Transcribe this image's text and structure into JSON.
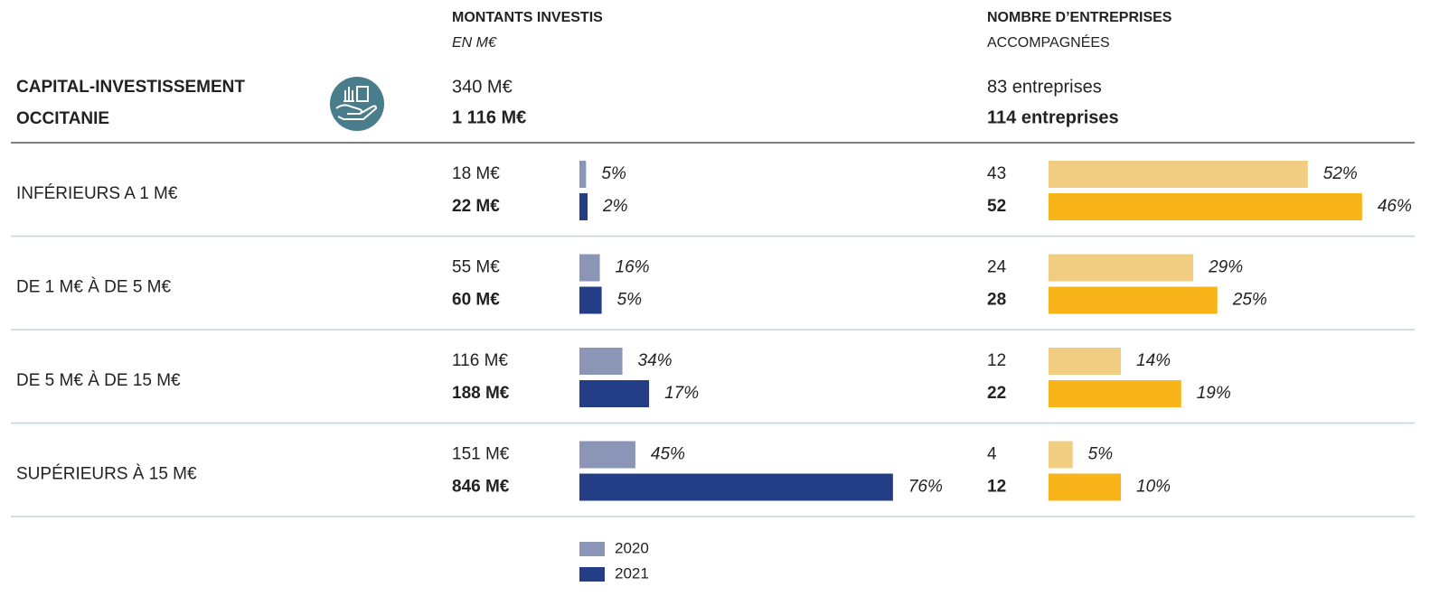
{
  "header": {
    "title": [
      "CAPITAL-INVESTISSEMENT",
      "OCCITANIE"
    ]
  },
  "columns": [
    {
      "title": "MONTANTS INVESTIS",
      "subtitle": "EN M€",
      "totals": [
        "340 M€",
        "1 116 M€"
      ]
    },
    {
      "title": "NOMBRE D’ENTREPRISES",
      "subtitle": "ACCOMPAGNÉES",
      "totals": [
        "83 entreprises",
        "114 entreprises"
      ]
    }
  ],
  "series": [
    {
      "name": "2020",
      "colors": [
        "#8a95b8",
        "#f0cd80"
      ]
    },
    {
      "name": "2021",
      "colors": [
        "#233e87",
        "#f8b419"
      ]
    }
  ],
  "rows": [
    {
      "label": "INFÉRIEURS A 1 M€",
      "cells": [
        {
          "values": [
            18,
            22
          ],
          "value_labels": [
            "18 M€",
            "22 M€"
          ],
          "shares": [
            5,
            2
          ],
          "share_labels": [
            "5%",
            "2%"
          ]
        },
        {
          "values": [
            43,
            52
          ],
          "shares": [
            52,
            46
          ],
          "share_labels": [
            "52%",
            "46%"
          ]
        }
      ]
    },
    {
      "label": "DE 1 M€ À DE 5 M€",
      "cells": [
        {
          "values": [
            55,
            60
          ],
          "value_labels": [
            "55 M€",
            "60 M€"
          ],
          "shares": [
            16,
            5
          ],
          "share_labels": [
            "16%",
            "5%"
          ]
        },
        {
          "values": [
            24,
            28
          ],
          "shares": [
            29,
            25
          ],
          "share_labels": [
            "29%",
            "25%"
          ]
        }
      ]
    },
    {
      "label": "DE 5 M€ À DE 15 M€",
      "cells": [
        {
          "values": [
            116,
            188
          ],
          "value_labels": [
            "116 M€",
            "188 M€"
          ],
          "shares": [
            34,
            17
          ],
          "share_labels": [
            "34%",
            "17%"
          ]
        },
        {
          "values": [
            12,
            22
          ],
          "shares": [
            14,
            19
          ],
          "share_labels": [
            "14%",
            "19%"
          ]
        }
      ]
    },
    {
      "label": "SUPÉRIEURS À 15 M€",
      "cells": [
        {
          "values": [
            151,
            846
          ],
          "value_labels": [
            "151 M€",
            "846 M€"
          ],
          "shares": [
            45,
            76
          ],
          "share_labels": [
            "45%",
            "76%"
          ]
        },
        {
          "values": [
            4,
            12
          ],
          "shares": [
            5,
            10
          ],
          "share_labels": [
            "5%",
            "10%"
          ]
        }
      ]
    }
  ]
}
